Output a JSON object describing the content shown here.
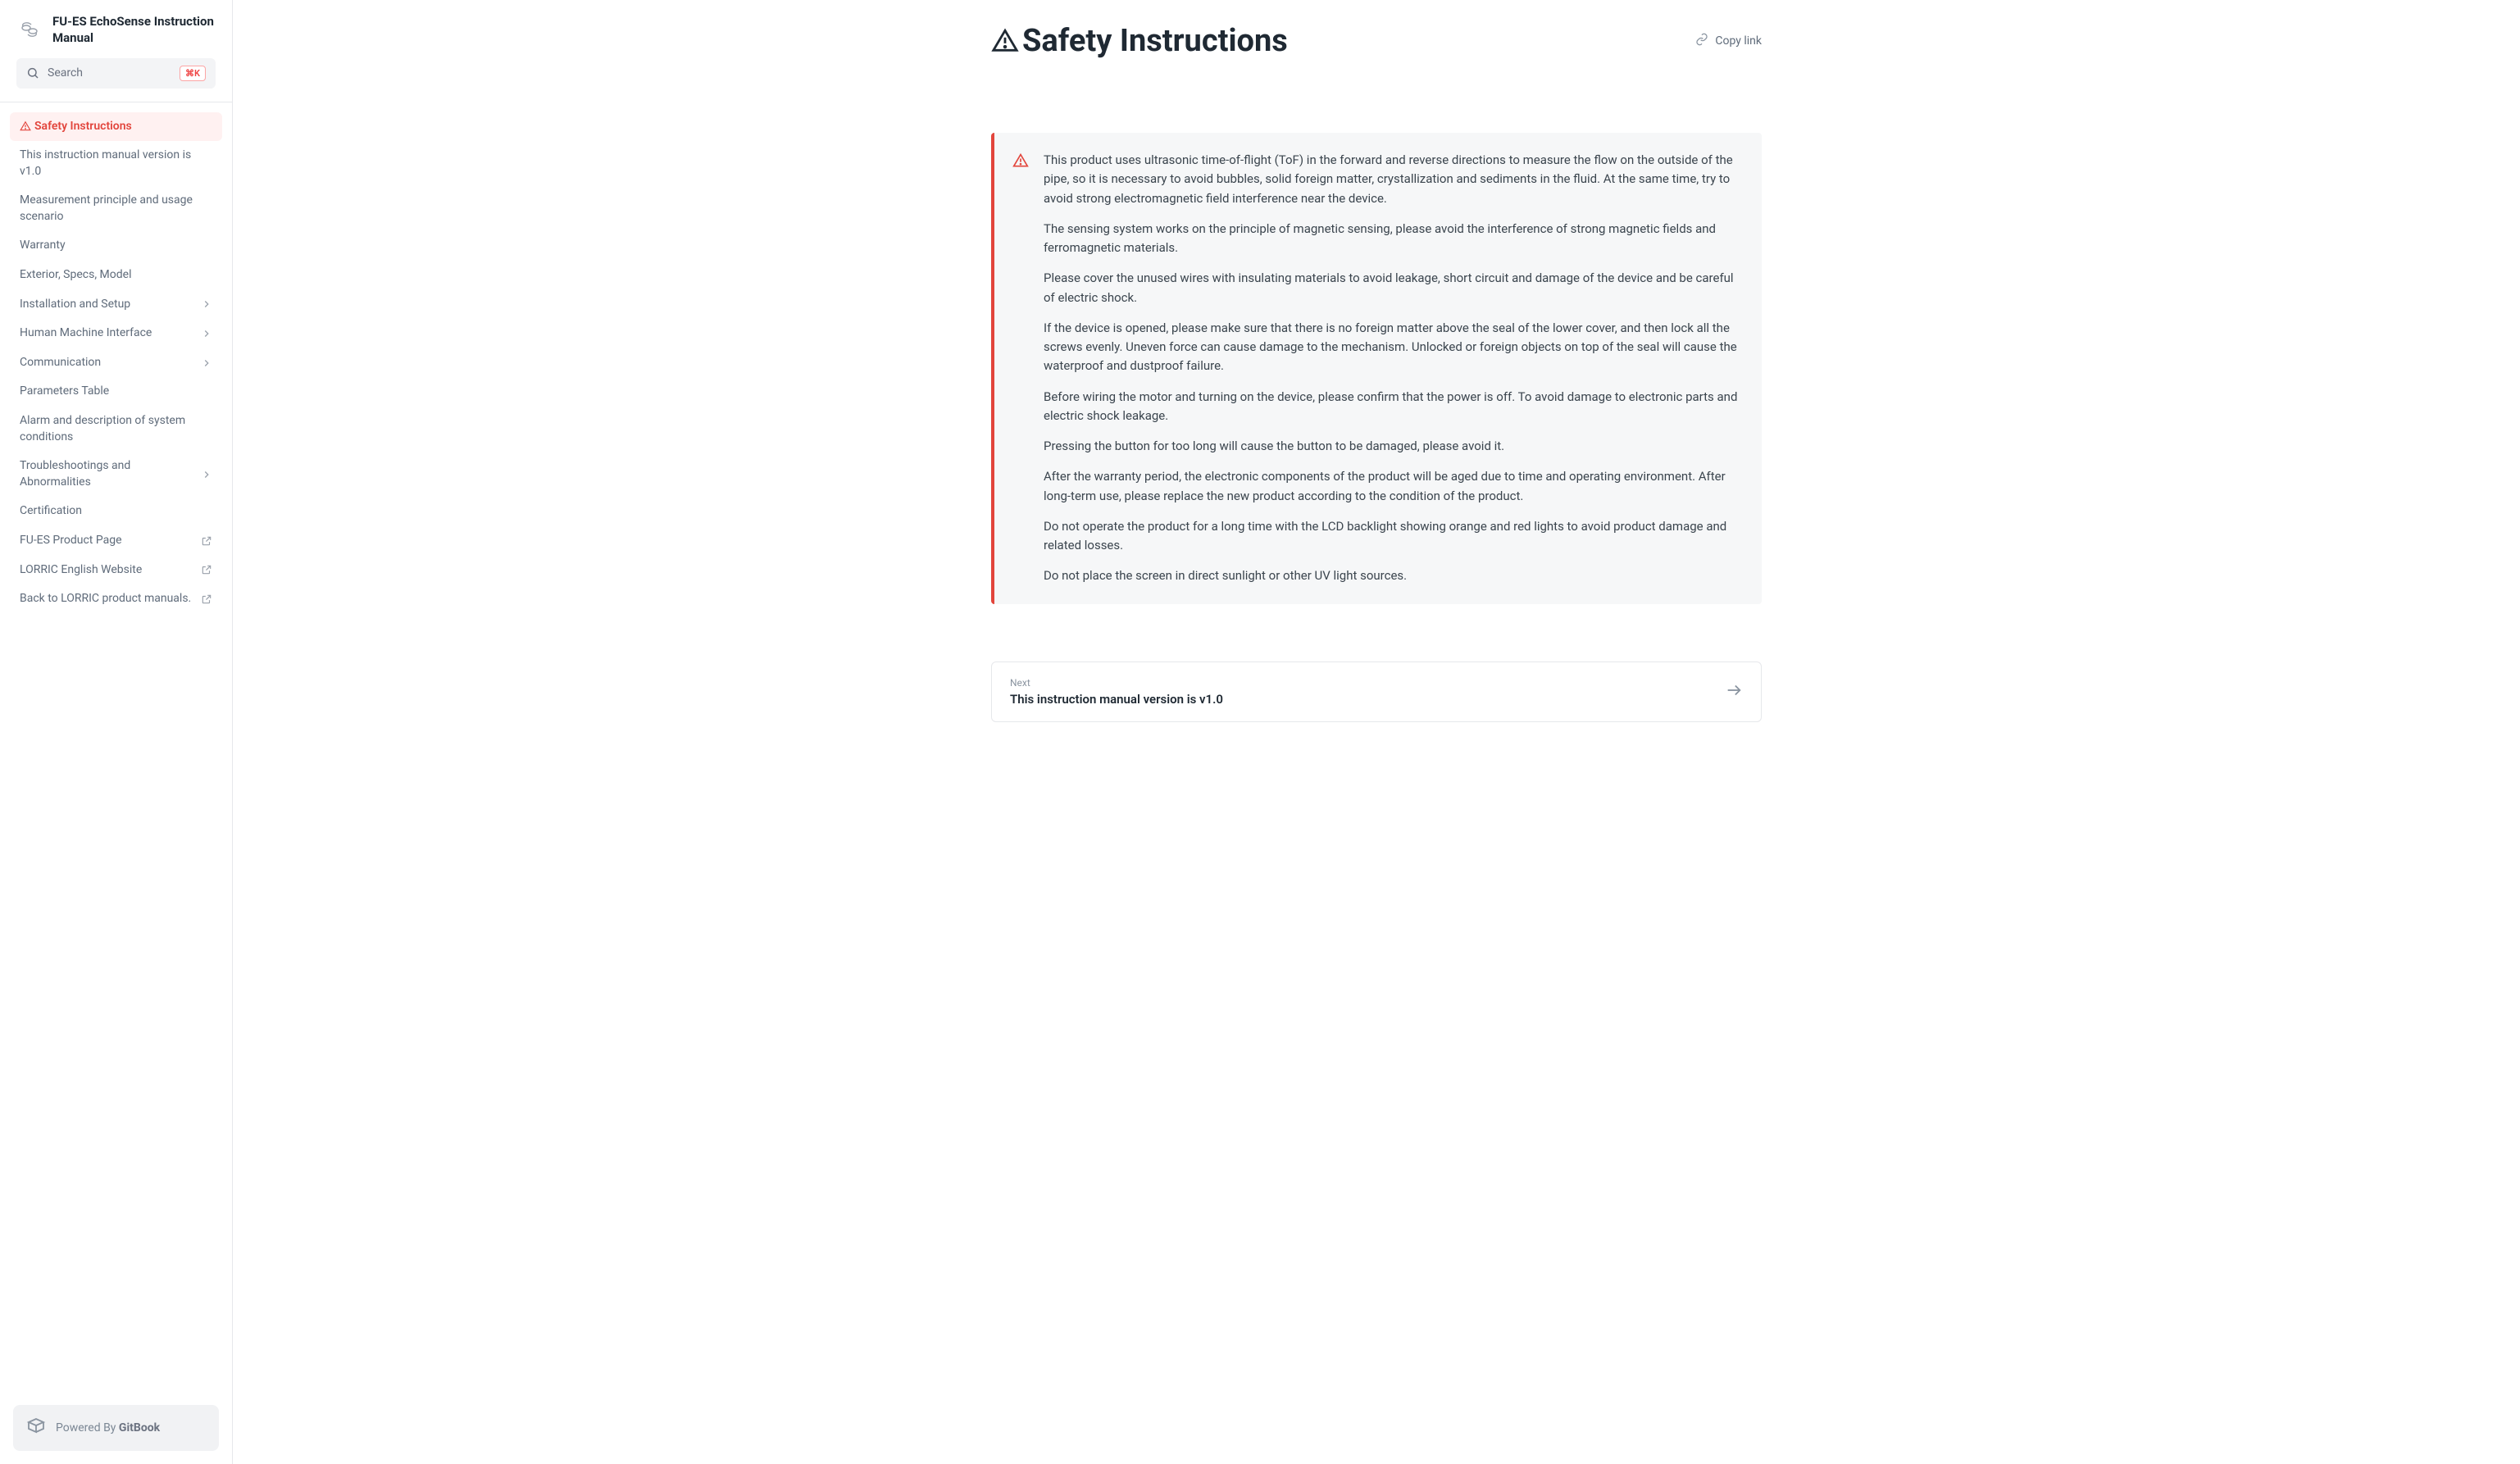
{
  "sidebar": {
    "title": "FU-ES EchoSense Instruction Manual",
    "search_placeholder": "Search",
    "search_shortcut": "⌘K",
    "items": [
      {
        "label": "Safety Instructions",
        "active": true,
        "warn_icon": true
      },
      {
        "label": "This instruction manual version is v1.0"
      },
      {
        "label": "Measurement principle and usage scenario"
      },
      {
        "label": "Warranty"
      },
      {
        "label": "Exterior, Specs, Model"
      },
      {
        "label": "Installation and Setup",
        "chevron": true
      },
      {
        "label": "Human Machine Interface",
        "chevron": true
      },
      {
        "label": "Communication",
        "chevron": true
      },
      {
        "label": "Parameters Table"
      },
      {
        "label": "Alarm and description of system conditions"
      },
      {
        "label": "Troubleshootings and Abnormalities",
        "chevron": true
      },
      {
        "label": "Certification"
      },
      {
        "label": "FU-ES Product Page",
        "external": true
      },
      {
        "label": "LORRIC English Website",
        "external": true
      },
      {
        "label": "Back to LORRIC product manuals.",
        "external": true
      }
    ],
    "powered_prefix": "Powered By ",
    "powered_brand": "GitBook"
  },
  "page": {
    "title": "Safety Instructions",
    "copy_link_label": "Copy link",
    "callout": {
      "accent_color": "#e2453c",
      "background_color": "#f6f7f8",
      "paragraphs": [
        "This product uses ultrasonic time-of-flight (ToF) in the forward and reverse directions to measure the flow on the outside of the pipe, so it is necessary to avoid bubbles, solid foreign matter, crystallization and sediments in the fluid. At the same time, try to avoid strong electromagnetic field interference near the device.",
        "The sensing system works on the principle of magnetic sensing, please avoid the interference of strong magnetic fields and ferromagnetic materials.",
        "Please cover the unused wires with insulating materials to avoid leakage, short circuit and damage of the device and be careful of electric shock.",
        "If the device is opened, please make sure that there is no foreign matter above the seal of the lower cover, and then lock all the screws evenly. Uneven force can cause damage to the mechanism. Unlocked or foreign objects on top of the seal will cause the waterproof and dustproof failure.",
        "Before wiring the motor and turning on the device, please confirm that the power is off. To avoid damage to electronic parts and electric shock leakage.",
        "Pressing the button for too long will cause the button to be damaged, please avoid it.",
        "After the warranty period, the electronic components of the product will be aged due to time and operating environment. After long-term use, please replace the new product according to the condition of the product.",
        "Do not operate the product for a long time with the LCD backlight showing orange and red lights to avoid product damage and related losses.",
        "Do not place the screen in direct sunlight or other UV light sources."
      ]
    },
    "next": {
      "meta": "Next",
      "title": "This instruction manual version is v1.0"
    }
  }
}
